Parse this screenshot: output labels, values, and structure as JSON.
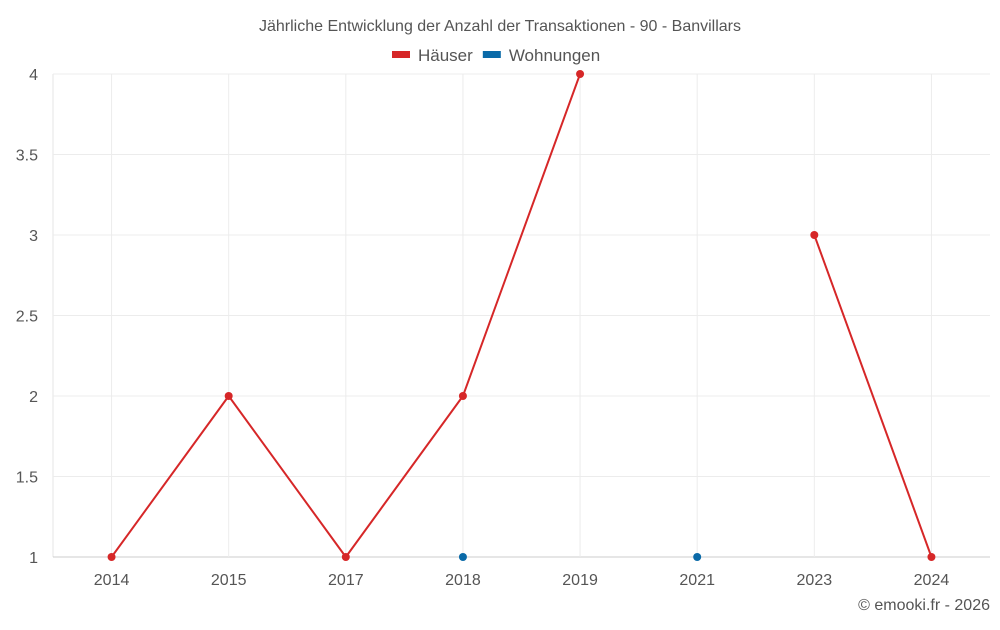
{
  "chart_data": {
    "type": "line",
    "title": "Jährliche Entwicklung der Anzahl der Transaktionen - 90 - Banvillars",
    "categories": [
      "2014",
      "2015",
      "2017",
      "2018",
      "2019",
      "2021",
      "2023",
      "2024"
    ],
    "series": [
      {
        "name": "Häuser",
        "color": "#d62728",
        "values": [
          1,
          2,
          1,
          2,
          4,
          null,
          3,
          1
        ]
      },
      {
        "name": "Wohnungen",
        "color": "#0a6aa8",
        "values": [
          null,
          null,
          null,
          1,
          null,
          1,
          null,
          null
        ]
      }
    ],
    "yticks": [
      "1",
      "1.5",
      "2",
      "2.5",
      "3",
      "3.5",
      "4"
    ],
    "ylim": [
      1,
      4
    ],
    "grid": true,
    "legend": "top-center",
    "xlabel": "",
    "ylabel": ""
  },
  "footer": {
    "credit": "© emooki.fr - 2026"
  }
}
